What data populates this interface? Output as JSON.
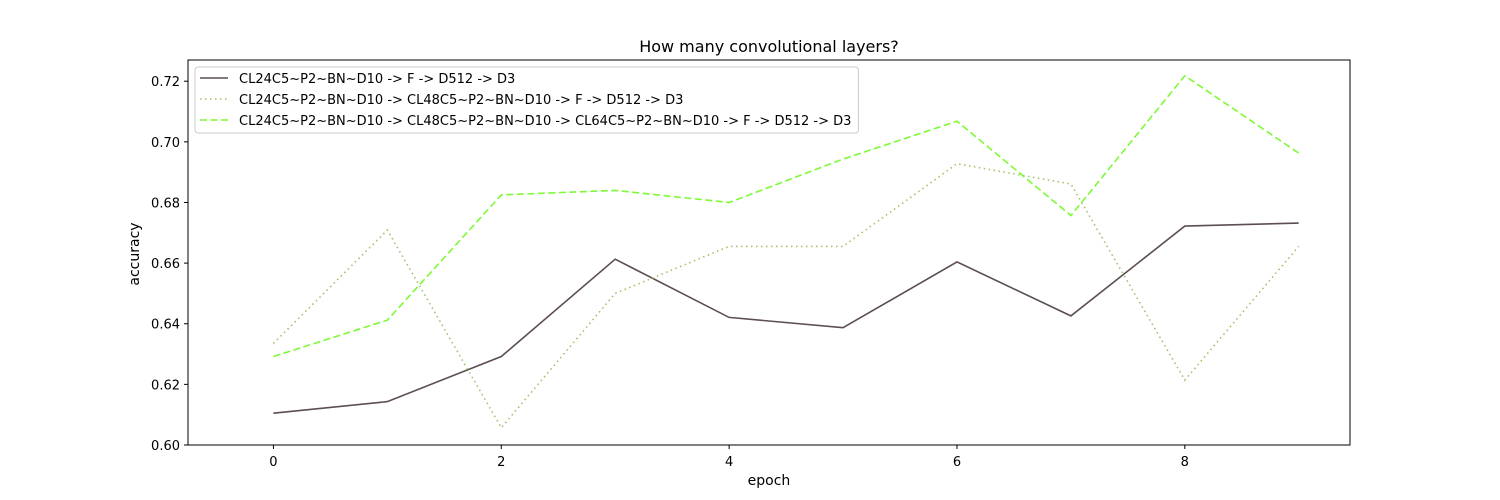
{
  "chart_data": {
    "type": "line",
    "title": "How many convolutional layers?",
    "xlabel": "epoch",
    "ylabel": "accuracy",
    "x": [
      0,
      1,
      2,
      3,
      4,
      5,
      6,
      7,
      8,
      9
    ],
    "xlim": [
      -0.75,
      9.45
    ],
    "ylim": [
      0.6,
      0.727
    ],
    "xticks": [
      0,
      2,
      4,
      6,
      8
    ],
    "yticks": [
      0.6,
      0.62,
      0.64,
      0.66,
      0.68,
      0.7,
      0.72
    ],
    "ytick_labels": [
      "0.60",
      "0.62",
      "0.64",
      "0.66",
      "0.68",
      "0.70",
      "0.72"
    ],
    "grid": false,
    "legend_position": "top-left",
    "series": [
      {
        "name": "CL24C5~P2~BN~D10 -> F -> D512 -> D3",
        "color": "#5d4e4f",
        "style": "solid",
        "values": [
          0.6105,
          0.6143,
          0.6292,
          0.6613,
          0.6421,
          0.6387,
          0.6604,
          0.6426,
          0.6722,
          0.6732
        ]
      },
      {
        "name": "CL24C5~P2~BN~D10 -> CL48C5~P2~BN~D10 -> F -> D512 -> D3",
        "color": "#a3c16a",
        "style": "dotted",
        "values": [
          0.6335,
          0.6709,
          0.6057,
          0.65,
          0.6655,
          0.6655,
          0.6928,
          0.6861,
          0.6214,
          0.6655
        ]
      },
      {
        "name": "CL24C5~P2~BN~D10 -> CL48C5~P2~BN~D10 -> CL64C5~P2~BN~D10 -> F -> D512 -> D3",
        "color": "#7cfa34",
        "style": "dashed",
        "values": [
          0.6292,
          0.6412,
          0.6825,
          0.684,
          0.68,
          0.6943,
          0.7068,
          0.6757,
          0.7218,
          0.6963
        ]
      }
    ]
  }
}
